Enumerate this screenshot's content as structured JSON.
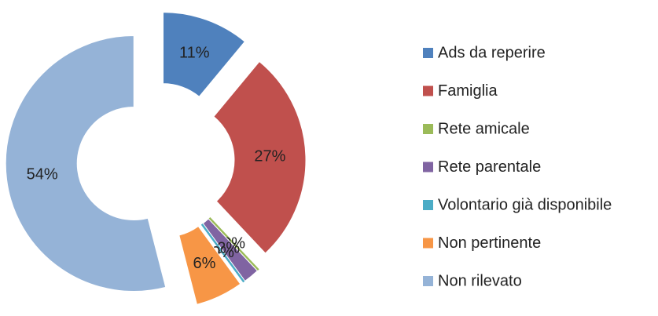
{
  "chart_data": {
    "type": "donut",
    "categories": [
      "Ads da reperire",
      "Famiglia",
      "Rete amicale",
      "Rete parentale",
      "Volontario già disponibile",
      "Non pertinente",
      "Non rilevato"
    ],
    "values": [
      11,
      27,
      0,
      2,
      0,
      6,
      54
    ],
    "value_labels": [
      "11%",
      "27%",
      "0%",
      "2%",
      "0%",
      "6%",
      "54%"
    ],
    "colors": [
      "#4f81bd",
      "#c0504d",
      "#9bbb59",
      "#8064a2",
      "#4bacc6",
      "#f79646",
      "#95b3d7"
    ],
    "legend": "right"
  }
}
